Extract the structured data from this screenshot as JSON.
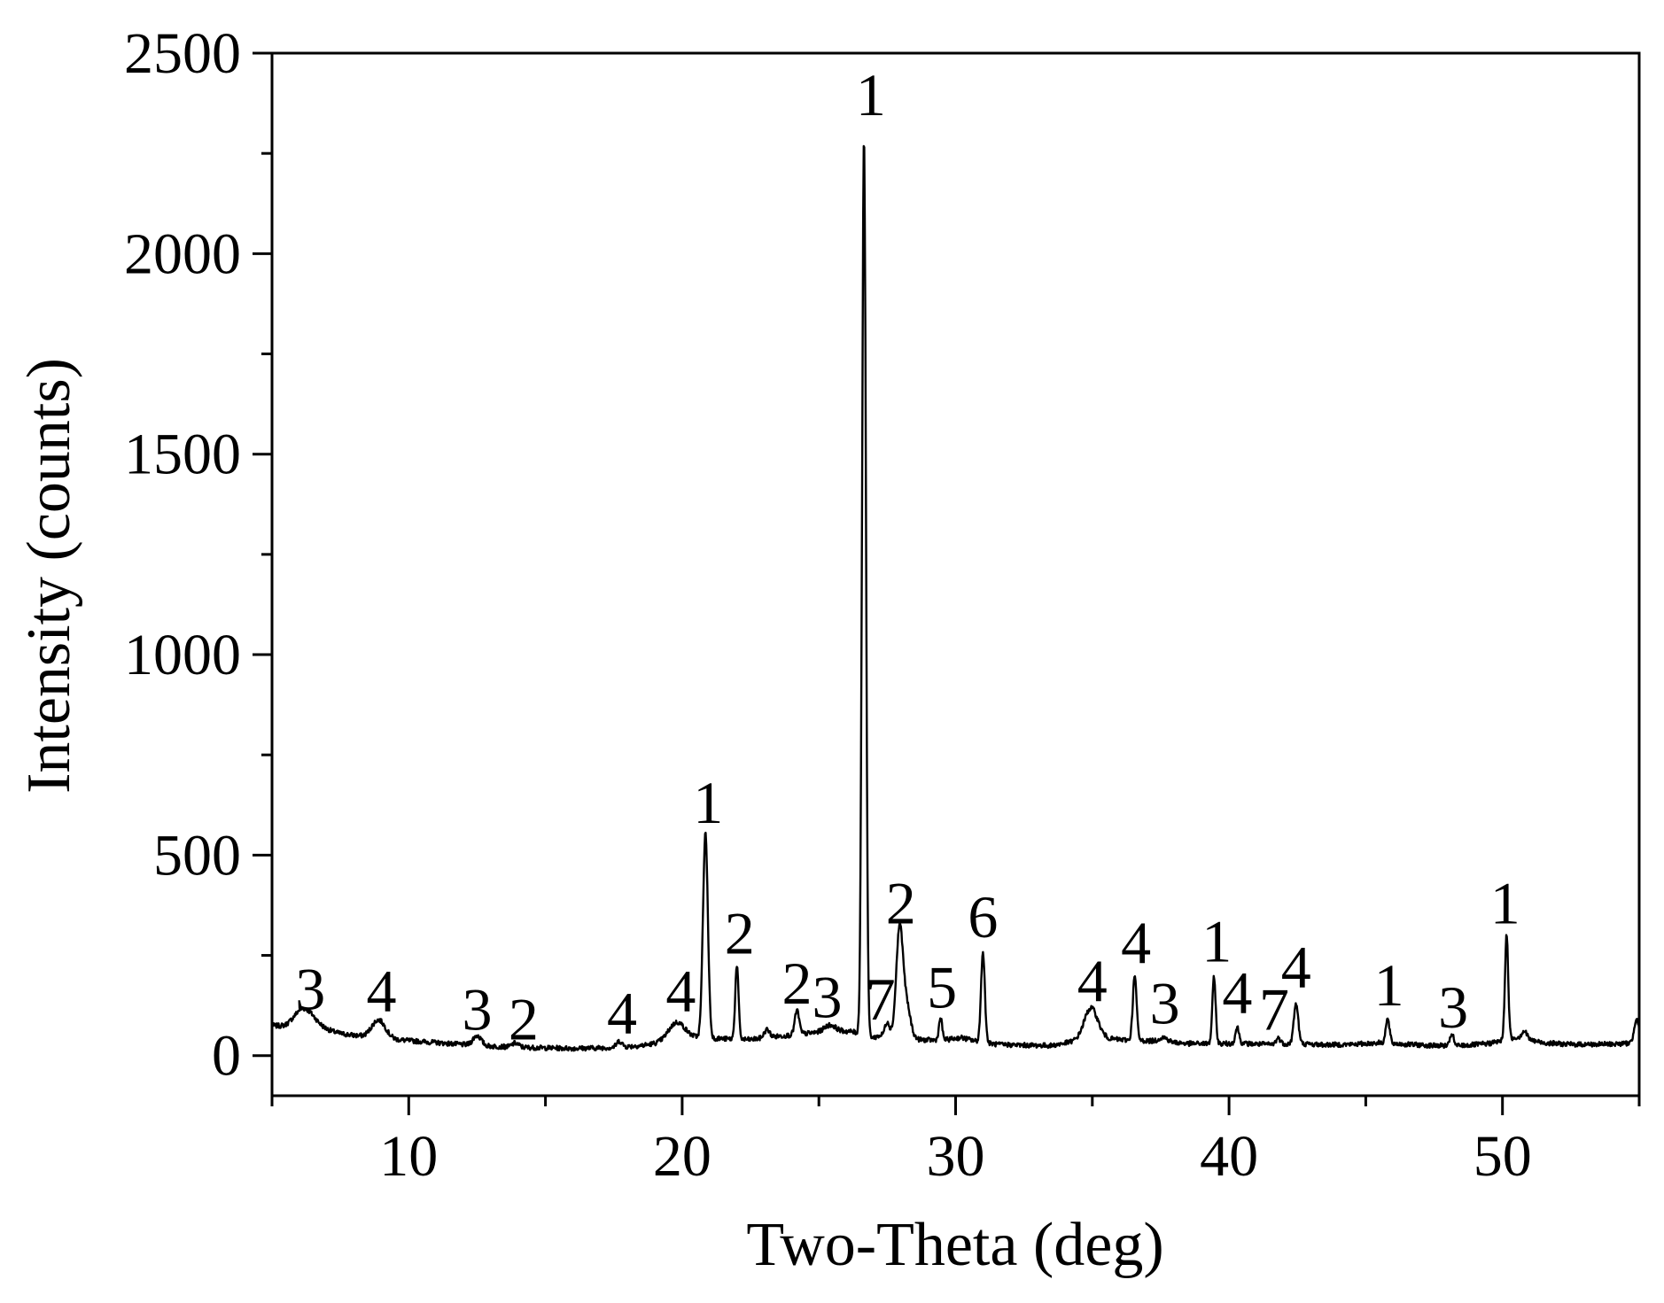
{
  "chart_data": {
    "type": "line",
    "xlabel": "Two-Theta (deg)",
    "ylabel": "Intensity (counts)",
    "xlim": [
      5,
      55
    ],
    "ylim": [
      -100,
      2500
    ],
    "xticks": [
      10,
      20,
      30,
      40,
      50
    ],
    "yticks": [
      0,
      500,
      1000,
      1500,
      2000,
      2500
    ],
    "x_minor_step": 5,
    "y_minor_step": 250,
    "grid": false,
    "line_color": "#000000",
    "baseline": [
      [
        5.0,
        75
      ],
      [
        5.5,
        72
      ],
      [
        6.0,
        80
      ],
      [
        6.8,
        68
      ],
      [
        7.5,
        55
      ],
      [
        8.3,
        48
      ],
      [
        9.5,
        40
      ],
      [
        10.5,
        35
      ],
      [
        11.5,
        30
      ],
      [
        12.5,
        25
      ],
      [
        13.5,
        22
      ],
      [
        14.5,
        20
      ],
      [
        16.0,
        18
      ],
      [
        17.5,
        20
      ],
      [
        18.5,
        25
      ],
      [
        19.5,
        35
      ],
      [
        20.5,
        45
      ],
      [
        21.5,
        42
      ],
      [
        22.5,
        40
      ],
      [
        23.5,
        48
      ],
      [
        24.5,
        55
      ],
      [
        25.5,
        62
      ],
      [
        26.2,
        60
      ],
      [
        27.0,
        45
      ],
      [
        27.5,
        55
      ],
      [
        28.5,
        40
      ],
      [
        29.5,
        38
      ],
      [
        30.2,
        45
      ],
      [
        30.8,
        35
      ],
      [
        31.5,
        28
      ],
      [
        32.5,
        26
      ],
      [
        33.5,
        25
      ],
      [
        34.3,
        35
      ],
      [
        35.5,
        42
      ],
      [
        36.5,
        38
      ],
      [
        37.5,
        36
      ],
      [
        38.5,
        30
      ],
      [
        39.5,
        30
      ],
      [
        40.5,
        30
      ],
      [
        41.5,
        28
      ],
      [
        42.5,
        30
      ],
      [
        43.5,
        27
      ],
      [
        44.5,
        28
      ],
      [
        45.5,
        32
      ],
      [
        46.5,
        28
      ],
      [
        47.5,
        25
      ],
      [
        48.5,
        25
      ],
      [
        49.5,
        30
      ],
      [
        50.5,
        45
      ],
      [
        51.5,
        32
      ],
      [
        52.5,
        28
      ],
      [
        53.5,
        28
      ],
      [
        54.5,
        30
      ],
      [
        55.0,
        35
      ]
    ],
    "peaks": [
      {
        "x": 6.2,
        "y": 40,
        "w": 0.35
      },
      {
        "x": 8.9,
        "y": 45,
        "w": 0.25
      },
      {
        "x": 12.5,
        "y": 25,
        "w": 0.15
      },
      {
        "x": 13.9,
        "y": 10,
        "w": 0.12
      },
      {
        "x": 17.7,
        "y": 15,
        "w": 0.1
      },
      {
        "x": 19.8,
        "y": 45,
        "w": 0.3
      },
      {
        "x": 20.85,
        "y": 510,
        "w": 0.09
      },
      {
        "x": 22.0,
        "y": 185,
        "w": 0.06
      },
      {
        "x": 23.1,
        "y": 20,
        "w": 0.1
      },
      {
        "x": 24.2,
        "y": 60,
        "w": 0.08
      },
      {
        "x": 25.4,
        "y": 15,
        "w": 0.2
      },
      {
        "x": 26.65,
        "y": 2240,
        "w": 0.07
      },
      {
        "x": 27.5,
        "y": 30,
        "w": 0.08
      },
      {
        "x": 27.95,
        "y": 260,
        "w": 0.12
      },
      {
        "x": 28.2,
        "y": 80,
        "w": 0.15
      },
      {
        "x": 29.45,
        "y": 55,
        "w": 0.06
      },
      {
        "x": 31.0,
        "y": 225,
        "w": 0.07
      },
      {
        "x": 34.95,
        "y": 80,
        "w": 0.25
      },
      {
        "x": 36.55,
        "y": 160,
        "w": 0.07
      },
      {
        "x": 37.6,
        "y": 10,
        "w": 0.15
      },
      {
        "x": 39.45,
        "y": 165,
        "w": 0.06
      },
      {
        "x": 40.3,
        "y": 40,
        "w": 0.07
      },
      {
        "x": 41.8,
        "y": 15,
        "w": 0.08
      },
      {
        "x": 42.45,
        "y": 100,
        "w": 0.08
      },
      {
        "x": 45.8,
        "y": 60,
        "w": 0.07
      },
      {
        "x": 48.15,
        "y": 30,
        "w": 0.06
      },
      {
        "x": 50.15,
        "y": 260,
        "w": 0.06
      },
      {
        "x": 50.8,
        "y": 20,
        "w": 0.1
      },
      {
        "x": 54.9,
        "y": 60,
        "w": 0.08
      }
    ],
    "annotations": [
      {
        "text": "3",
        "x": 6.4,
        "y": 115
      },
      {
        "text": "4",
        "x": 9.0,
        "y": 110
      },
      {
        "text": "3",
        "x": 12.5,
        "y": 65
      },
      {
        "text": "2",
        "x": 14.2,
        "y": 40
      },
      {
        "text": "4",
        "x": 17.8,
        "y": 55
      },
      {
        "text": "4",
        "x": 19.95,
        "y": 110
      },
      {
        "text": "1",
        "x": 20.95,
        "y": 580
      },
      {
        "text": "2",
        "x": 22.1,
        "y": 255
      },
      {
        "text": "2",
        "x": 24.2,
        "y": 130
      },
      {
        "text": "3",
        "x": 25.3,
        "y": 95
      },
      {
        "text": "1",
        "x": 26.9,
        "y": 2345
      },
      {
        "text": "7",
        "x": 27.25,
        "y": 90
      },
      {
        "text": "2",
        "x": 28.0,
        "y": 330
      },
      {
        "text": "5",
        "x": 29.5,
        "y": 120
      },
      {
        "text": "6",
        "x": 31.0,
        "y": 295
      },
      {
        "text": "4",
        "x": 35.0,
        "y": 135
      },
      {
        "text": "4",
        "x": 36.6,
        "y": 230
      },
      {
        "text": "3",
        "x": 37.65,
        "y": 80
      },
      {
        "text": "1",
        "x": 39.55,
        "y": 235
      },
      {
        "text": "4",
        "x": 40.3,
        "y": 105
      },
      {
        "text": "7",
        "x": 41.65,
        "y": 65
      },
      {
        "text": "4",
        "x": 42.45,
        "y": 170
      },
      {
        "text": "1",
        "x": 45.85,
        "y": 125
      },
      {
        "text": "3",
        "x": 48.2,
        "y": 70
      },
      {
        "text": "1",
        "x": 50.1,
        "y": 330
      }
    ]
  }
}
